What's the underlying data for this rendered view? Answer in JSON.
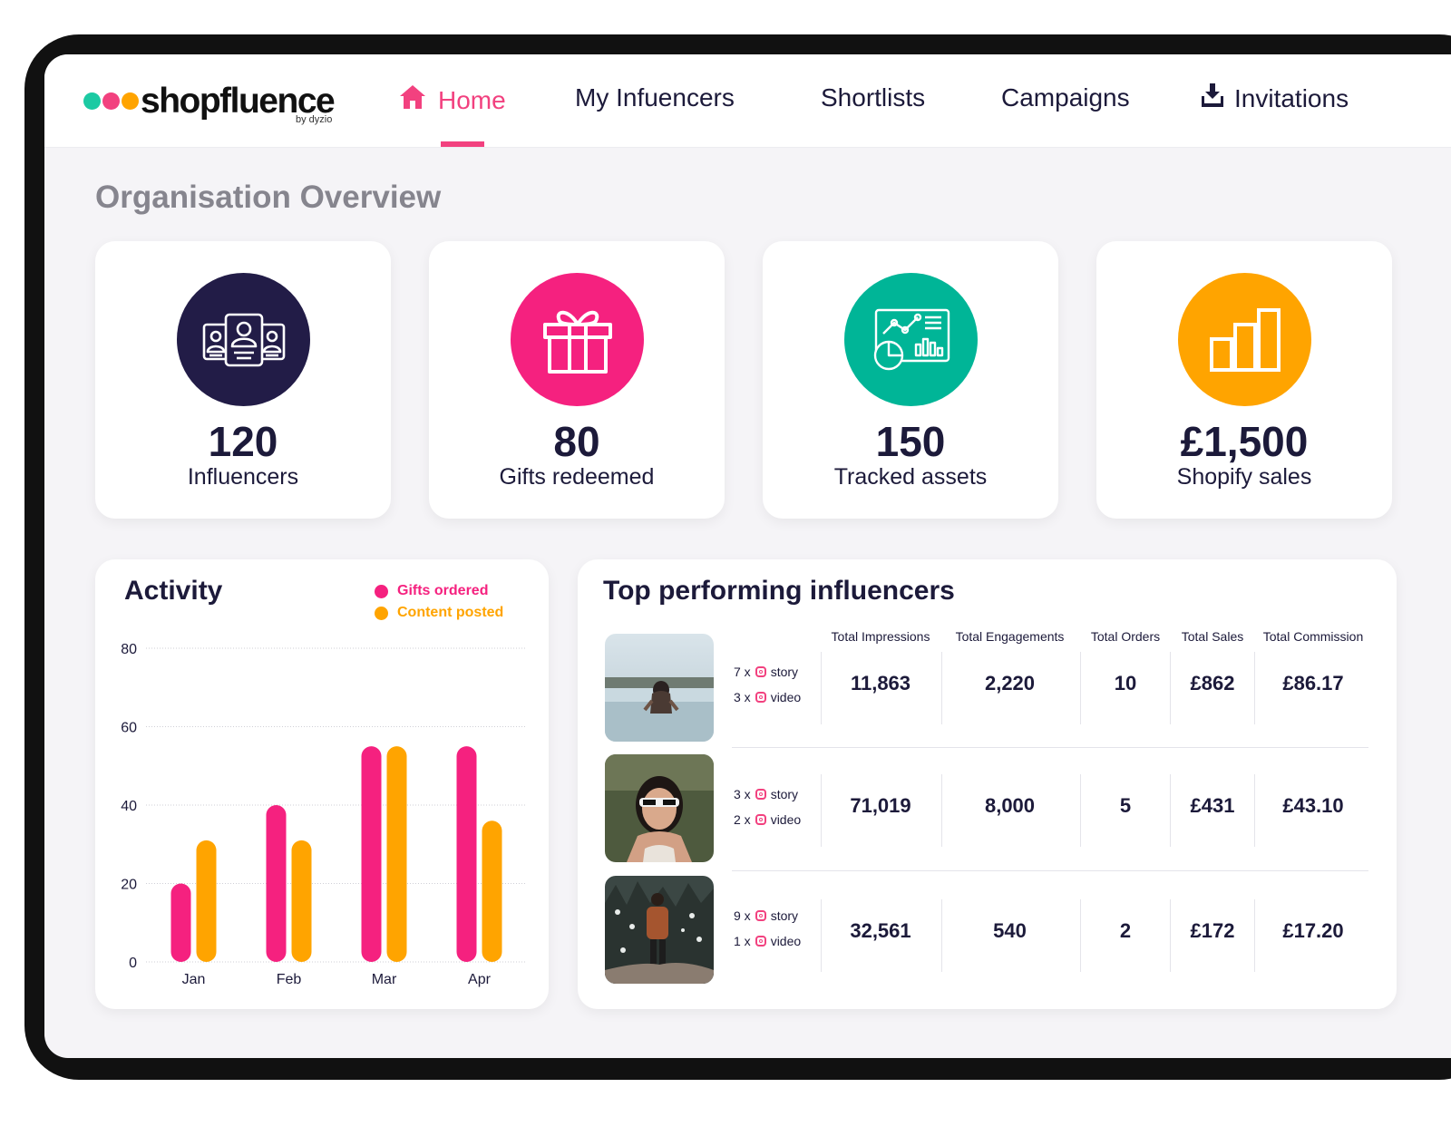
{
  "brand": {
    "name": "shopfluence",
    "subtitle": "by dyzio",
    "dot_colors": [
      "#1ccaa3",
      "#f2417f",
      "#ffa400"
    ]
  },
  "nav": {
    "items": [
      {
        "label": "Home",
        "icon": "home-icon",
        "active": true
      },
      {
        "label": "My Infuencers"
      },
      {
        "label": "Shortlists"
      },
      {
        "label": "Campaigns"
      },
      {
        "label": "Invitations",
        "icon": "download-icon"
      }
    ]
  },
  "overview": {
    "title": "Organisation Overview",
    "stats": [
      {
        "value": "120",
        "label": "Influencers",
        "icon": "influencers-icon",
        "color": "#221c47"
      },
      {
        "value": "80",
        "label": "Gifts redeemed",
        "icon": "gift-icon",
        "color": "#f5217f"
      },
      {
        "value": "150",
        "label": "Tracked assets",
        "icon": "analytics-dashboard-icon",
        "color": "#00b597"
      },
      {
        "value": "£1,500",
        "label": "Shopify sales",
        "icon": "bar-chart-icon",
        "color": "#ffa400"
      }
    ]
  },
  "activity": {
    "title": "Activity",
    "legend": [
      {
        "label": "Gifts ordered",
        "color": "#f5217f"
      },
      {
        "label": "Content posted",
        "color": "#ffa400"
      }
    ]
  },
  "chart_data": {
    "type": "bar",
    "categories": [
      "Jan",
      "Feb",
      "Mar",
      "Apr"
    ],
    "series": [
      {
        "name": "Gifts ordered",
        "values": [
          20,
          40,
          55,
          55
        ],
        "color": "#f5217f"
      },
      {
        "name": "Content posted",
        "values": [
          31,
          31,
          55,
          36
        ],
        "color": "#ffa400"
      }
    ],
    "ylim": [
      0,
      80
    ],
    "yticks": [
      0,
      20,
      40,
      60,
      80
    ],
    "grid": true,
    "legend_position": "top-right"
  },
  "top": {
    "title": "Top performing influencers",
    "columns": [
      "Total Impressions",
      "Total Engagements",
      "Total Orders",
      "Total Sales",
      "Total Commission"
    ],
    "rows": [
      {
        "story_count": "7 x",
        "story_label": "story",
        "video_count": "3 x",
        "video_label": "video",
        "impressions": "11,863",
        "engagements": "2,220",
        "orders": "10",
        "sales": "£862",
        "commission": "£86.17"
      },
      {
        "story_count": "3 x",
        "story_label": "story",
        "video_count": "2 x",
        "video_label": "video",
        "impressions": "71,019",
        "engagements": "8,000",
        "orders": "5",
        "sales": "£431",
        "commission": "£43.10"
      },
      {
        "story_count": "9 x",
        "story_label": "story",
        "video_count": "1 x",
        "video_label": "video",
        "impressions": "32,561",
        "engagements": "540",
        "orders": "2",
        "sales": "£172",
        "commission": "£17.20"
      }
    ]
  }
}
